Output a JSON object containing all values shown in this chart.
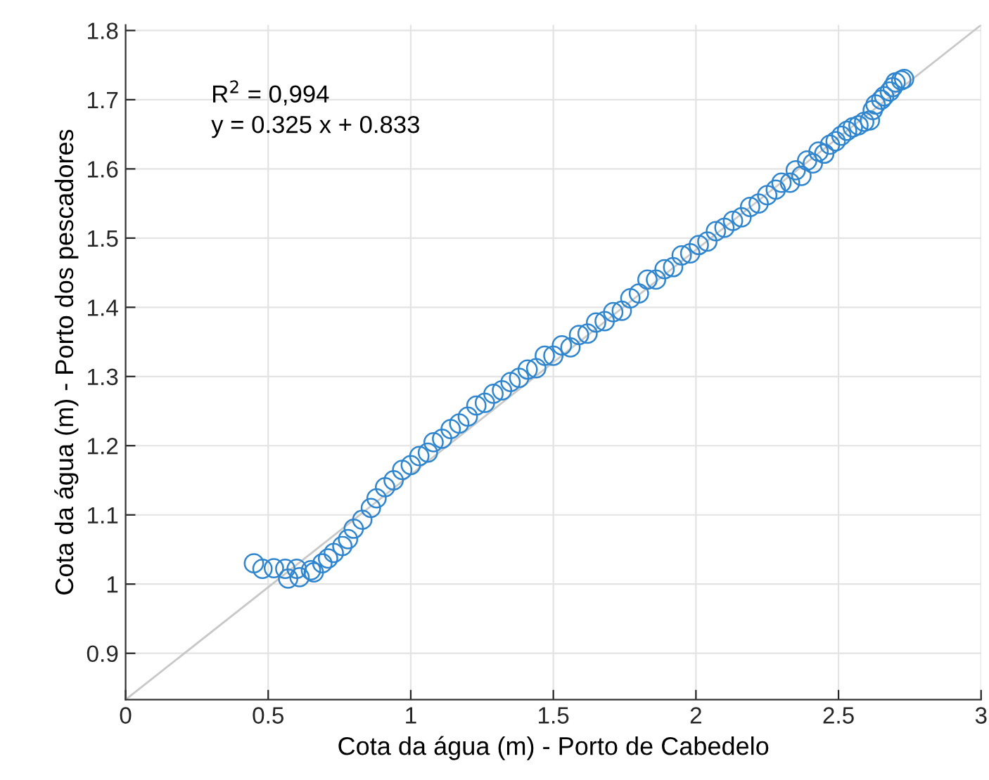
{
  "chart_data": {
    "type": "scatter",
    "xlabel": "Cota da água (m) - Porto de Cabedelo",
    "ylabel": "Cota da água (m) - Porto dos pescadores",
    "xlim": [
      0,
      3
    ],
    "ylim": [
      0.833,
      1.808
    ],
    "xticks": [
      0,
      0.5,
      1,
      1.5,
      2,
      2.5,
      3
    ],
    "yticks": [
      0.9,
      1,
      1.1,
      1.2,
      1.3,
      1.4,
      1.5,
      1.6,
      1.7,
      1.8
    ],
    "grid": true,
    "annotations": [
      "R$^{2}$ = 0,994",
      "y = 0.325 x + 0.833"
    ],
    "series": [
      {
        "type": "line",
        "color": "#c8c8c8",
        "x": [
          0,
          3
        ],
        "values": [
          0.833,
          1.808
        ]
      },
      {
        "color": "#2f86cf",
        "marker": "circle",
        "x": [
          0.45,
          0.48,
          0.52,
          0.56,
          0.57,
          0.6,
          0.61,
          0.65,
          0.66,
          0.69,
          0.71,
          0.73,
          0.76,
          0.78,
          0.8,
          0.83,
          0.86,
          0.88,
          0.91,
          0.94,
          0.97,
          1.0,
          1.03,
          1.06,
          1.08,
          1.11,
          1.14,
          1.17,
          1.2,
          1.23,
          1.26,
          1.29,
          1.32,
          1.35,
          1.38,
          1.41,
          1.44,
          1.47,
          1.5,
          1.53,
          1.56,
          1.59,
          1.62,
          1.65,
          1.68,
          1.71,
          1.74,
          1.77,
          1.8,
          1.83,
          1.86,
          1.89,
          1.92,
          1.95,
          1.98,
          2.01,
          2.04,
          2.07,
          2.1,
          2.13,
          2.16,
          2.19,
          2.22,
          2.25,
          2.28,
          2.3,
          2.33,
          2.35,
          2.37,
          2.39,
          2.41,
          2.43,
          2.45,
          2.47,
          2.49,
          2.51,
          2.53,
          2.55,
          2.57,
          2.59,
          2.61,
          2.62,
          2.63,
          2.65,
          2.66,
          2.68,
          2.69,
          2.7,
          2.72,
          2.73
        ],
        "values": [
          1.03,
          1.022,
          1.023,
          1.022,
          1.008,
          1.022,
          1.01,
          1.02,
          1.017,
          1.03,
          1.037,
          1.045,
          1.055,
          1.065,
          1.08,
          1.093,
          1.11,
          1.124,
          1.14,
          1.15,
          1.165,
          1.172,
          1.185,
          1.19,
          1.205,
          1.21,
          1.224,
          1.232,
          1.242,
          1.258,
          1.262,
          1.275,
          1.28,
          1.292,
          1.298,
          1.31,
          1.312,
          1.33,
          1.33,
          1.345,
          1.342,
          1.36,
          1.362,
          1.378,
          1.38,
          1.393,
          1.395,
          1.413,
          1.42,
          1.44,
          1.44,
          1.455,
          1.458,
          1.475,
          1.478,
          1.49,
          1.495,
          1.51,
          1.515,
          1.525,
          1.53,
          1.545,
          1.55,
          1.562,
          1.57,
          1.58,
          1.58,
          1.598,
          1.59,
          1.612,
          1.608,
          1.625,
          1.622,
          1.635,
          1.64,
          1.648,
          1.655,
          1.66,
          1.663,
          1.668,
          1.67,
          1.685,
          1.693,
          1.7,
          1.705,
          1.712,
          1.718,
          1.725,
          1.728,
          1.73
        ]
      }
    ]
  }
}
